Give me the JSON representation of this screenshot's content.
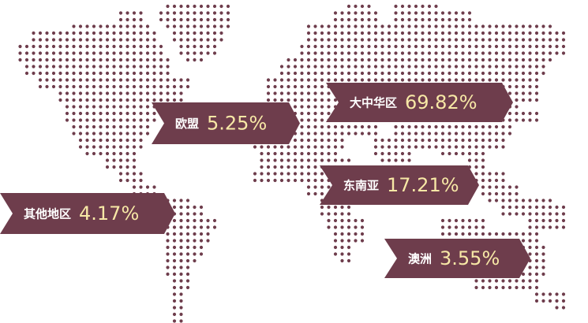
{
  "regions": [
    {
      "name": "欧盟",
      "value": "5.25%"
    },
    {
      "name": "大中华区",
      "value": "69.82%"
    },
    {
      "name": "东南亚",
      "value": "17.21%"
    },
    {
      "name": "其他地区",
      "value": "4.17%"
    },
    {
      "name": "澳洲",
      "value": "3.55%"
    }
  ]
}
